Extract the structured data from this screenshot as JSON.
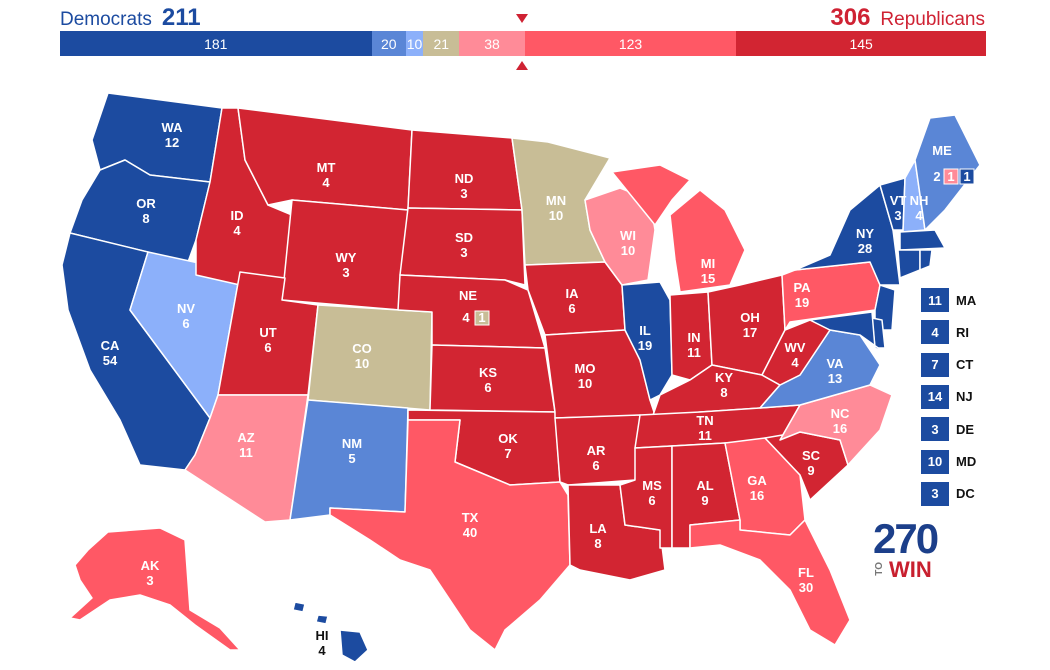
{
  "header": {
    "dem_label": "Democrats",
    "dem_total": "211",
    "rep_total": "306",
    "rep_label": "Republicans"
  },
  "bar": [
    {
      "label": "181",
      "value": 181,
      "color": "#1c4ba0"
    },
    {
      "label": "20",
      "value": 20,
      "color": "#5a86d6"
    },
    {
      "label": "10",
      "value": 10,
      "color": "#8cb0fa"
    },
    {
      "label": "21",
      "value": 21,
      "color": "#c8bd96"
    },
    {
      "label": "38",
      "value": 38,
      "color": "#ff8b98"
    },
    {
      "label": "123",
      "value": 123,
      "color": "#ff5865"
    },
    {
      "label": "145",
      "value": 145,
      "color": "#d22532"
    }
  ],
  "colors": {
    "safe_d": "#1c4ba0",
    "likely_d": "#5a86d6",
    "lean_d": "#8cb0fa",
    "tossup": "#c8bd96",
    "lean_r": "#ff8b98",
    "likely_r": "#ff5865",
    "safe_r": "#d22532"
  },
  "states": {
    "WA": {
      "abbr": "WA",
      "ev": "12"
    },
    "OR": {
      "abbr": "OR",
      "ev": "8"
    },
    "CA": {
      "abbr": "CA",
      "ev": "54"
    },
    "NV": {
      "abbr": "NV",
      "ev": "6"
    },
    "ID": {
      "abbr": "ID",
      "ev": "4"
    },
    "MT": {
      "abbr": "MT",
      "ev": "4"
    },
    "WY": {
      "abbr": "WY",
      "ev": "3"
    },
    "UT": {
      "abbr": "UT",
      "ev": "6"
    },
    "AZ": {
      "abbr": "AZ",
      "ev": "11"
    },
    "CO": {
      "abbr": "CO",
      "ev": "10"
    },
    "NM": {
      "abbr": "NM",
      "ev": "5"
    },
    "ND": {
      "abbr": "ND",
      "ev": "3"
    },
    "SD": {
      "abbr": "SD",
      "ev": "3"
    },
    "NE": {
      "abbr": "NE",
      "ev": "4",
      "district": "1"
    },
    "KS": {
      "abbr": "KS",
      "ev": "6"
    },
    "OK": {
      "abbr": "OK",
      "ev": "7"
    },
    "TX": {
      "abbr": "TX",
      "ev": "40"
    },
    "MN": {
      "abbr": "MN",
      "ev": "10"
    },
    "IA": {
      "abbr": "IA",
      "ev": "6"
    },
    "MO": {
      "abbr": "MO",
      "ev": "10"
    },
    "AR": {
      "abbr": "AR",
      "ev": "6"
    },
    "LA": {
      "abbr": "LA",
      "ev": "8"
    },
    "WI": {
      "abbr": "WI",
      "ev": "10"
    },
    "IL": {
      "abbr": "IL",
      "ev": "19"
    },
    "MI": {
      "abbr": "MI",
      "ev": "15"
    },
    "IN": {
      "abbr": "IN",
      "ev": "11"
    },
    "OH": {
      "abbr": "OH",
      "ev": "17"
    },
    "KY": {
      "abbr": "KY",
      "ev": "8"
    },
    "TN": {
      "abbr": "TN",
      "ev": "11"
    },
    "MS": {
      "abbr": "MS",
      "ev": "6"
    },
    "AL": {
      "abbr": "AL",
      "ev": "9"
    },
    "GA": {
      "abbr": "GA",
      "ev": "16"
    },
    "FL": {
      "abbr": "FL",
      "ev": "30"
    },
    "SC": {
      "abbr": "SC",
      "ev": "9"
    },
    "NC": {
      "abbr": "NC",
      "ev": "16"
    },
    "VA": {
      "abbr": "VA",
      "ev": "13"
    },
    "WV": {
      "abbr": "WV",
      "ev": "4"
    },
    "PA": {
      "abbr": "PA",
      "ev": "19"
    },
    "NY": {
      "abbr": "NY",
      "ev": "28"
    },
    "VT": {
      "abbr": "VT",
      "ev": "3"
    },
    "NH": {
      "abbr": "NH",
      "ev": "4"
    },
    "ME": {
      "abbr": "ME",
      "ev": "2",
      "district_r": "1",
      "district_d": "1"
    },
    "AK": {
      "abbr": "AK",
      "ev": "3"
    },
    "HI": {
      "abbr": "HI",
      "ev": "4"
    }
  },
  "small_states": [
    {
      "ev": "11",
      "abbr": "MA"
    },
    {
      "ev": "4",
      "abbr": "RI"
    },
    {
      "ev": "7",
      "abbr": "CT"
    },
    {
      "ev": "14",
      "abbr": "NJ"
    },
    {
      "ev": "3",
      "abbr": "DE"
    },
    {
      "ev": "10",
      "abbr": "MD"
    },
    {
      "ev": "3",
      "abbr": "DC"
    }
  ],
  "logo": {
    "number": "270",
    "to": "TO",
    "win": "WIN"
  }
}
